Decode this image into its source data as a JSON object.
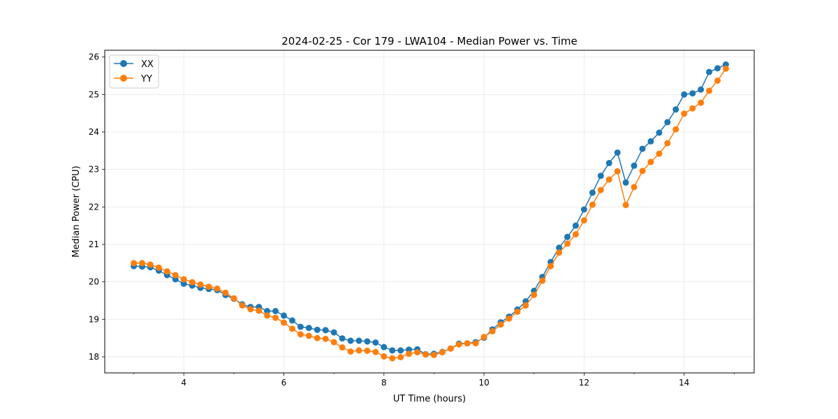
{
  "chart_data": {
    "type": "line",
    "title": "2024-02-25 - Cor 179 - LWA104 - Median Power vs. Time",
    "xlabel": "UT Time (hours)",
    "ylabel": "Median Power (CPU)",
    "xlim": [
      2.42,
      15.4
    ],
    "ylim": [
      17.57,
      26.18
    ],
    "xticks": [
      4,
      6,
      8,
      10,
      12,
      14
    ],
    "xtick_labels": [
      "4",
      "6",
      "8",
      "10",
      "12",
      "14"
    ],
    "yticks": [
      18,
      19,
      20,
      21,
      22,
      23,
      24,
      25,
      26
    ],
    "ytick_labels": [
      "18",
      "19",
      "20",
      "21",
      "22",
      "23",
      "24",
      "25",
      "26"
    ],
    "grid": true,
    "legend_position": "top-left",
    "x": [
      3.0,
      3.167,
      3.333,
      3.5,
      3.667,
      3.833,
      4.0,
      4.167,
      4.333,
      4.5,
      4.667,
      4.833,
      5.0,
      5.167,
      5.333,
      5.5,
      5.667,
      5.833,
      6.0,
      6.167,
      6.333,
      6.5,
      6.667,
      6.833,
      7.0,
      7.167,
      7.333,
      7.5,
      7.667,
      7.833,
      8.0,
      8.167,
      8.333,
      8.5,
      8.667,
      8.833,
      9.0,
      9.167,
      9.333,
      9.5,
      9.667,
      9.833,
      10.0,
      10.167,
      10.333,
      10.5,
      10.667,
      10.833,
      11.0,
      11.167,
      11.333,
      11.5,
      11.667,
      11.833,
      12.0,
      12.167,
      12.333,
      12.5,
      12.667,
      12.833,
      13.0,
      13.167,
      13.333,
      13.5,
      13.667,
      13.833,
      14.0,
      14.167,
      14.333,
      14.5,
      14.667,
      14.833
    ],
    "series": [
      {
        "name": "XX",
        "color": "#1f77b4",
        "values": [
          20.42,
          20.41,
          20.39,
          20.3,
          20.18,
          20.07,
          19.95,
          19.9,
          19.84,
          19.81,
          19.78,
          19.65,
          19.55,
          19.4,
          19.33,
          19.33,
          19.22,
          19.22,
          19.1,
          18.97,
          18.8,
          18.77,
          18.72,
          18.71,
          18.65,
          18.49,
          18.43,
          18.43,
          18.41,
          18.38,
          18.26,
          18.17,
          18.17,
          18.19,
          18.2,
          18.07,
          18.08,
          18.13,
          18.22,
          18.35,
          18.36,
          18.39,
          18.51,
          18.73,
          18.92,
          19.07,
          19.26,
          19.48,
          19.76,
          20.13,
          20.53,
          20.91,
          21.2,
          21.5,
          21.93,
          22.38,
          22.83,
          23.17,
          23.45,
          22.65,
          23.1,
          23.55,
          23.75,
          23.98,
          24.26,
          24.6,
          25.0,
          25.03,
          25.13,
          25.6,
          25.7,
          25.8
        ]
      },
      {
        "name": "YY",
        "color": "#ff7f0e",
        "values": [
          20.5,
          20.5,
          20.46,
          20.38,
          20.28,
          20.18,
          20.07,
          19.99,
          19.93,
          19.87,
          19.82,
          19.71,
          19.56,
          19.37,
          19.27,
          19.23,
          19.1,
          19.04,
          18.91,
          18.75,
          18.6,
          18.56,
          18.5,
          18.48,
          18.39,
          18.25,
          18.14,
          18.17,
          18.16,
          18.13,
          18.01,
          17.96,
          17.99,
          18.08,
          18.12,
          18.06,
          18.05,
          18.12,
          18.22,
          18.33,
          18.36,
          18.36,
          18.53,
          18.68,
          18.86,
          19.02,
          19.2,
          19.37,
          19.65,
          20.03,
          20.42,
          20.78,
          21.02,
          21.27,
          21.64,
          22.06,
          22.45,
          22.73,
          22.95,
          22.05,
          22.53,
          22.96,
          23.2,
          23.42,
          23.7,
          24.07,
          24.49,
          24.63,
          24.78,
          25.1,
          25.37,
          25.69
        ]
      }
    ]
  }
}
